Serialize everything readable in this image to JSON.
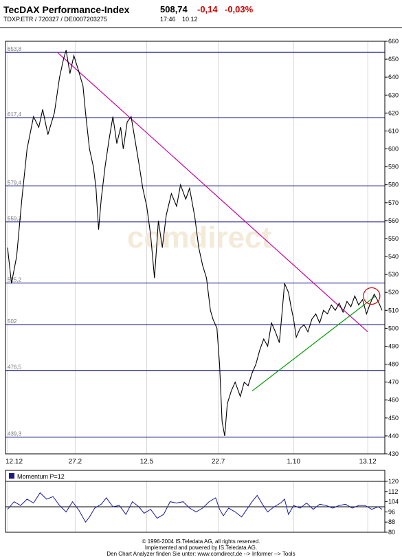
{
  "header": {
    "title": "TecDAX Performance-Index",
    "ids": "TDXP.ETR  /  720327  /  DE0007203275",
    "price": "508,74",
    "change": "-0,14",
    "change_pct": "-0,03%",
    "time": "17:46",
    "date": "10.12"
  },
  "watermark": "comdirect",
  "colors": {
    "price_line": "#000000",
    "resistance_line": "#cc0099",
    "support_line": "#009900",
    "level_line": "#000080",
    "momentum_line": "#1a1aa0",
    "circle": "#cc0000"
  },
  "chart_data": [
    {
      "type": "line",
      "title": "",
      "xlabel": "",
      "ylabel": "",
      "ylim": [
        430,
        660
      ],
      "yticks": [
        430,
        440,
        450,
        460,
        470,
        480,
        490,
        500,
        510,
        520,
        530,
        540,
        550,
        560,
        570,
        580,
        590,
        600,
        610,
        620,
        630,
        640,
        650,
        660
      ],
      "x_tick_labels": [
        "12.12",
        "27.2",
        "12.5",
        "22.7",
        "1.10",
        "13.12"
      ],
      "x_tick_index": [
        0,
        52,
        107,
        162,
        220,
        277
      ],
      "levels": [
        {
          "label": "653,8",
          "value": 653.8
        },
        {
          "label": "617,4",
          "value": 617.4
        },
        {
          "label": "579,4",
          "value": 579.4
        },
        {
          "label": "559,3",
          "value": 559.3
        },
        {
          "label": "525,2",
          "value": 525.2
        },
        {
          "label": "502",
          "value": 502
        },
        {
          "label": "476,5",
          "value": 476.5
        },
        {
          "label": "439,3",
          "value": 439.3
        }
      ],
      "trendlines": [
        {
          "name": "resistance",
          "from": [
            38,
            654
          ],
          "to": [
            277,
            498
          ]
        },
        {
          "name": "support",
          "from": [
            188,
            465
          ],
          "to": [
            283,
            518
          ]
        }
      ],
      "marker_circle": {
        "index": 280,
        "value": 518
      },
      "series": [
        {
          "name": "",
          "anchors": [
            [
              0,
              545
            ],
            [
              3,
              525
            ],
            [
              7,
              540
            ],
            [
              11,
              572
            ],
            [
              15,
              600
            ],
            [
              20,
              618
            ],
            [
              24,
              612
            ],
            [
              27,
              622
            ],
            [
              31,
              608
            ],
            [
              36,
              620
            ],
            [
              40,
              640
            ],
            [
              43,
              650
            ],
            [
              45,
              655
            ],
            [
              48,
              642
            ],
            [
              51,
              652
            ],
            [
              54,
              645
            ],
            [
              58,
              635
            ],
            [
              60,
              620
            ],
            [
              63,
              600
            ],
            [
              66,
              590
            ],
            [
              68,
              578
            ],
            [
              70,
              555
            ],
            [
              72,
              572
            ],
            [
              75,
              590
            ],
            [
              78,
              605
            ],
            [
              81,
              618
            ],
            [
              84,
              603
            ],
            [
              87,
              612
            ],
            [
              89,
              600
            ],
            [
              92,
              615
            ],
            [
              95,
              618
            ],
            [
              98,
              605
            ],
            [
              101,
              592
            ],
            [
              104,
              578
            ],
            [
              107,
              568
            ],
            [
              110,
              552
            ],
            [
              113,
              528
            ],
            [
              116,
              560
            ],
            [
              119,
              545
            ],
            [
              122,
              563
            ],
            [
              126,
              575
            ],
            [
              130,
              568
            ],
            [
              133,
              580
            ],
            [
              137,
              572
            ],
            [
              140,
              578
            ],
            [
              144,
              562
            ],
            [
              147,
              545
            ],
            [
              150,
              535
            ],
            [
              153,
              528
            ],
            [
              156,
              510
            ],
            [
              158,
              505
            ],
            [
              161,
              500
            ],
            [
              163,
              480
            ],
            [
              165,
              448
            ],
            [
              167,
              440
            ],
            [
              169,
              458
            ],
            [
              172,
              465
            ],
            [
              175,
              470
            ],
            [
              179,
              462
            ],
            [
              182,
              470
            ],
            [
              185,
              468
            ],
            [
              188,
              475
            ],
            [
              191,
              480
            ],
            [
              194,
              488
            ],
            [
              197,
              494
            ],
            [
              200,
              490
            ],
            [
              203,
              503
            ],
            [
              206,
              498
            ],
            [
              209,
              492
            ],
            [
              211,
              508
            ],
            [
              213,
              525
            ],
            [
              216,
              520
            ],
            [
              218,
              512
            ],
            [
              220,
              505
            ],
            [
              222,
              495
            ],
            [
              225,
              500
            ],
            [
              228,
              502
            ],
            [
              231,
              498
            ],
            [
              234,
              505
            ],
            [
              237,
              508
            ],
            [
              240,
              503
            ],
            [
              243,
              510
            ],
            [
              246,
              508
            ],
            [
              249,
              513
            ],
            [
              252,
              510
            ],
            [
              255,
              514
            ],
            [
              258,
              509
            ],
            [
              261,
              515
            ],
            [
              264,
              512
            ],
            [
              267,
              518
            ],
            [
              270,
              513
            ],
            [
              273,
              516
            ],
            [
              276,
              508
            ],
            [
              279,
              514
            ],
            [
              282,
              519
            ],
            [
              285,
              515
            ],
            [
              288,
              510
            ]
          ]
        }
      ]
    },
    {
      "type": "line",
      "title": "Momentum P=12",
      "ylim": [
        80,
        120
      ],
      "yticks": [
        80,
        88,
        96,
        104,
        112,
        120
      ],
      "ytick_labels": [
        "80",
        "88",
        "96",
        "104",
        "112",
        "120"
      ],
      "reference_line": 100,
      "series": [
        {
          "name": "Momentum P=12",
          "anchors": [
            [
              0,
              98
            ],
            [
              5,
              104
            ],
            [
              10,
              101
            ],
            [
              15,
              106
            ],
            [
              20,
              103
            ],
            [
              25,
              111
            ],
            [
              30,
              106
            ],
            [
              35,
              108
            ],
            [
              40,
              101
            ],
            [
              45,
              96
            ],
            [
              50,
              104
            ],
            [
              55,
              97
            ],
            [
              60,
              88
            ],
            [
              63,
              92
            ],
            [
              67,
              99
            ],
            [
              72,
              102
            ],
            [
              76,
              107
            ],
            [
              81,
              100
            ],
            [
              86,
              101
            ],
            [
              91,
              94
            ],
            [
              96,
              104
            ],
            [
              101,
              100
            ],
            [
              105,
              95
            ],
            [
              110,
              98
            ],
            [
              115,
              91
            ],
            [
              120,
              94
            ],
            [
              125,
              104
            ],
            [
              130,
              103
            ],
            [
              135,
              104
            ],
            [
              140,
              99
            ],
            [
              145,
              96
            ],
            [
              150,
              99
            ],
            [
              155,
              104
            ],
            [
              160,
              107
            ],
            [
              163,
              98
            ],
            [
              166,
              93
            ],
            [
              170,
              99
            ],
            [
              175,
              96
            ],
            [
              180,
              92
            ],
            [
              184,
              98
            ],
            [
              188,
              104
            ],
            [
              192,
              109
            ],
            [
              196,
              102
            ],
            [
              200,
              96
            ],
            [
              205,
              100
            ],
            [
              210,
              103
            ],
            [
              213,
              106
            ],
            [
              216,
              94
            ],
            [
              220,
              101
            ],
            [
              225,
              99
            ],
            [
              230,
              103
            ],
            [
              235,
              98
            ],
            [
              240,
              102
            ],
            [
              245,
              101
            ],
            [
              250,
              99
            ],
            [
              255,
              101
            ],
            [
              260,
              102
            ],
            [
              265,
              99
            ],
            [
              270,
              101
            ],
            [
              275,
              101
            ],
            [
              280,
              98
            ],
            [
              285,
              100
            ],
            [
              288,
              98
            ]
          ]
        }
      ]
    }
  ],
  "footer": {
    "line1": "© 1996-2004 IS.Teledata AG, all rights reserved.",
    "line2": "Implemented and powered by IS.Teledata AG.",
    "line3": "Den Chart Analyzer finden Sie unter: www.comdirect.de --> Informer --> Tools"
  }
}
